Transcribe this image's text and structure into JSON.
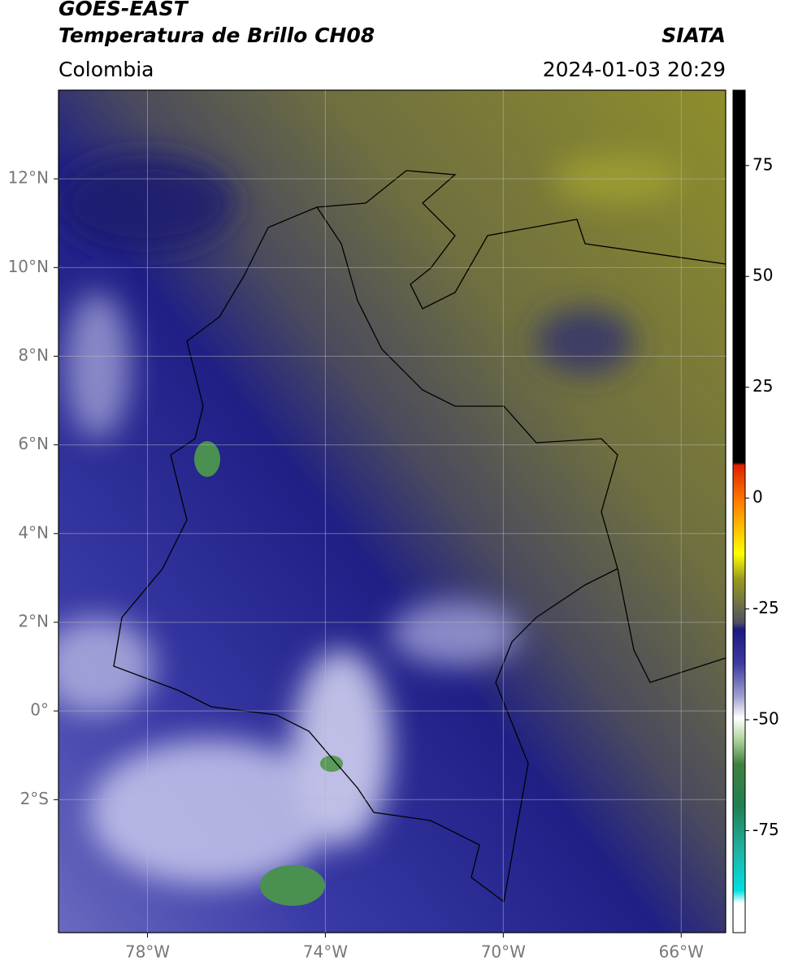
{
  "header": {
    "title_line1": "GOES-EAST",
    "title_line2": "Temperatura de Brillo CH08",
    "source": "SIATA",
    "region": "Colombia",
    "datetime": "2024-01-03 20:29"
  },
  "map": {
    "lon_lim": [
      -80,
      -65
    ],
    "lat_lim": [
      -5,
      14
    ],
    "grid": true,
    "lon_ticks": [
      {
        "value": -78,
        "label": "78°W"
      },
      {
        "value": -74,
        "label": "74°W"
      },
      {
        "value": -70,
        "label": "70°W"
      },
      {
        "value": -66,
        "label": "66°W"
      }
    ],
    "lat_ticks": [
      {
        "value": 12,
        "label": "12°N"
      },
      {
        "value": 10,
        "label": "10°N"
      },
      {
        "value": 8,
        "label": "8°N"
      },
      {
        "value": 6,
        "label": "6°N"
      },
      {
        "value": 4,
        "label": "4°N"
      },
      {
        "value": 2,
        "label": "2°N"
      },
      {
        "value": 0,
        "label": "0°"
      },
      {
        "value": -2,
        "label": "2°S"
      }
    ]
  },
  "colorbar": {
    "lim": [
      -98,
      92
    ],
    "ticks": [
      75,
      50,
      25,
      0,
      -25,
      -50,
      -75
    ]
  }
}
